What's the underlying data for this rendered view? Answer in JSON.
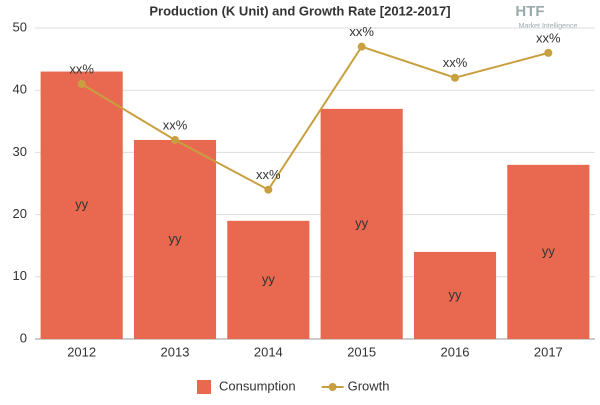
{
  "chart_data": {
    "type": "bar",
    "title": "Production (K Unit) and Growth Rate [2012-2017]",
    "logo": {
      "text": "HTF",
      "subtext": "Market Intelligence"
    },
    "categories": [
      "2012",
      "2013",
      "2014",
      "2015",
      "2016",
      "2017"
    ],
    "series": [
      {
        "name": "Consumption",
        "type": "bar",
        "color": "#e8694f",
        "values": [
          43,
          32,
          19,
          37,
          14,
          28
        ],
        "labels": [
          "yy",
          "yy",
          "yy",
          "yy",
          "yy",
          "yy"
        ]
      },
      {
        "name": "Growth",
        "type": "line",
        "color": "#c9a040",
        "values": [
          41,
          32,
          24,
          47,
          42,
          46
        ],
        "labels": [
          "xx%",
          "xx%",
          "xx%",
          "xx%",
          "xx%",
          "xx%"
        ]
      }
    ],
    "ylim": [
      0,
      50
    ],
    "yticks": [
      0,
      10,
      20,
      30,
      40,
      50
    ],
    "grid": true,
    "legend": "bottom"
  }
}
